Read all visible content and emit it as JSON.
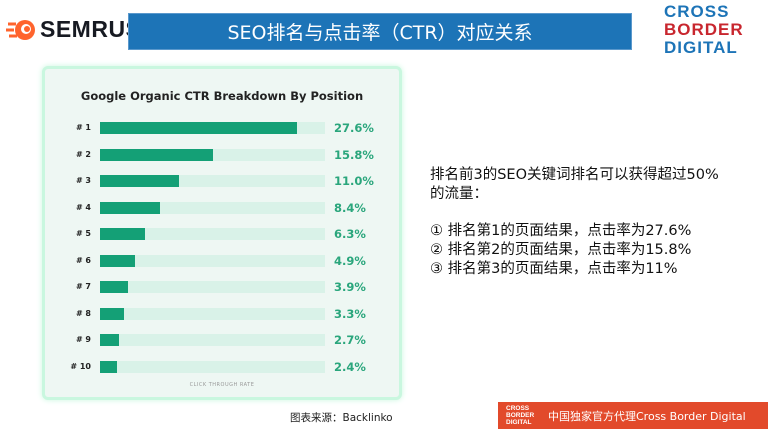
{
  "header": {
    "brand": "SEMRUSH",
    "title": "SEO排名与点击率（CTR）对应关系",
    "logo": [
      "CROSS",
      "BORDER",
      "DIGITAL"
    ]
  },
  "chart_data": {
    "type": "bar",
    "title": "Google Organic CTR Breakdown By Position",
    "xlabel": "CLICK THROUGH RATE",
    "categories": [
      "# 1",
      "# 2",
      "# 3",
      "# 4",
      "# 5",
      "# 6",
      "# 7",
      "# 8",
      "# 9",
      "# 10"
    ],
    "values": [
      27.6,
      15.8,
      11.0,
      8.4,
      6.3,
      4.9,
      3.9,
      3.3,
      2.7,
      2.4
    ],
    "value_labels": [
      "27.6%",
      "15.8%",
      "11.0%",
      "8.4%",
      "6.3%",
      "4.9%",
      "3.9%",
      "3.3%",
      "2.7%",
      "2.4%"
    ],
    "xlim": [
      0,
      31.5
    ],
    "bar_color": "#14a076",
    "track_color": "#d9f2e8"
  },
  "caption": "图表来源：Backlinko",
  "summary": {
    "intro1": "排名前3的SEO关键词排名可以获得超过50%",
    "intro2": "的流量：",
    "items": [
      "①  排名第1的页面结果，点击率为27.6%",
      "②  排名第2的页面结果，点击率为15.8%",
      "③  排名第3的页面结果，点击率为11%"
    ]
  },
  "footer": {
    "logo": [
      "CROSS",
      "BORDER",
      "DIGITAL"
    ],
    "text": "中国独家官方代理Cross Border Digital"
  },
  "colors": {
    "title_bg": "#1d74b7",
    "footer_bg": "#e24a2b",
    "semrush_orange": "#ff642d"
  }
}
